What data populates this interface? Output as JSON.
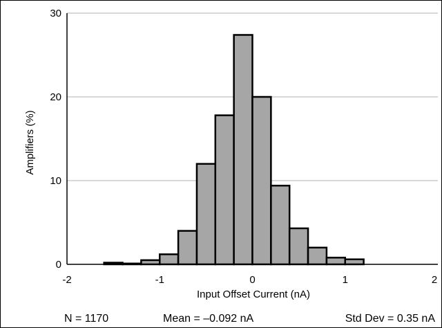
{
  "chart_data": {
    "type": "bar",
    "title": "",
    "xlabel": "Input Offset Current (nA)",
    "ylabel": "Amplifiers (%)",
    "xlim": [
      -2,
      2
    ],
    "ylim": [
      0,
      30
    ],
    "xticks": [
      "-2",
      "-1",
      "0",
      "1",
      "2"
    ],
    "yticks": [
      "0",
      "10",
      "20",
      "30"
    ],
    "grid": "horizontal",
    "bin_width": 0.2,
    "bins": [
      {
        "x_start": -1.6,
        "x_end": -1.4,
        "value": 0.2
      },
      {
        "x_start": -1.4,
        "x_end": -1.2,
        "value": 0.1
      },
      {
        "x_start": -1.2,
        "x_end": -1.0,
        "value": 0.5
      },
      {
        "x_start": -1.0,
        "x_end": -0.8,
        "value": 1.2
      },
      {
        "x_start": -0.8,
        "x_end": -0.6,
        "value": 4.0
      },
      {
        "x_start": -0.6,
        "x_end": -0.4,
        "value": 12.0
      },
      {
        "x_start": -0.4,
        "x_end": -0.2,
        "value": 17.8
      },
      {
        "x_start": -0.2,
        "x_end": 0.0,
        "value": 27.4
      },
      {
        "x_start": 0.0,
        "x_end": 0.2,
        "value": 20.0
      },
      {
        "x_start": 0.2,
        "x_end": 0.4,
        "value": 9.4
      },
      {
        "x_start": 0.4,
        "x_end": 0.6,
        "value": 4.3
      },
      {
        "x_start": 0.6,
        "x_end": 0.8,
        "value": 2.0
      },
      {
        "x_start": 0.8,
        "x_end": 1.0,
        "value": 0.8
      },
      {
        "x_start": 1.0,
        "x_end": 1.2,
        "value": 0.6
      }
    ],
    "colors": {
      "bar_fill": "#a6a6a6",
      "bar_stroke": "#000000",
      "grid": "#b0b0b0"
    }
  },
  "stats": {
    "n": "N = 1170",
    "mean": "Mean = –0.092 nA",
    "std": "Std Dev = 0.35 nA"
  }
}
